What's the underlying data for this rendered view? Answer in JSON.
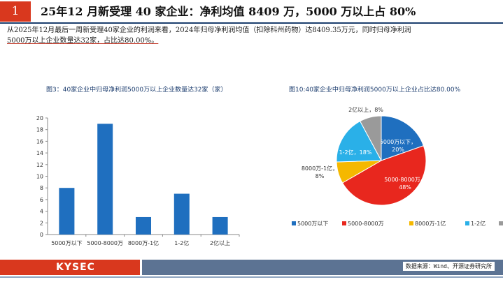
{
  "header": {
    "number": "1",
    "title": "25年12 月新受理 40 家企业：净利均值 8409 万，5000 万以上占 80%"
  },
  "description": {
    "line1": "从2025年12月最后一周新受理40家企业的利润来看，2024年归母净利润均值（扣除科州药物）达8409.35万元，同时归母净利润",
    "line2": "5000万以上企业数量达32家，占比达80.00%。"
  },
  "chart_data": [
    {
      "type": "bar",
      "title": "图3：40家企业中归母净利润5000万以上企业数量达32家（家）",
      "categories": [
        "5000万以下",
        "5000-8000万",
        "8000万-1亿",
        "1-2亿",
        "2亿以上"
      ],
      "values": [
        8,
        19,
        3,
        7,
        3
      ],
      "ylim": [
        0,
        20
      ],
      "yticks": [
        0,
        2,
        4,
        6,
        8,
        10,
        12,
        14,
        16,
        18,
        20
      ],
      "color": "#1f6fbf",
      "grid": false
    },
    {
      "type": "pie",
      "title": "图10:40家企业中归母净利润5000万以上企业占比达80.00%",
      "slices": [
        {
          "label": "5000万以下",
          "value": 20,
          "color": "#1f6fbf",
          "text": "5000万以下，\n20%"
        },
        {
          "label": "5000-8000万",
          "value": 48,
          "color": "#e8271e",
          "text": "5000-8000万，\n48%"
        },
        {
          "label": "8000万-1亿",
          "value": 8,
          "color": "#f5b800",
          "text": "8000万-1亿，\n8%"
        },
        {
          "label": "1-2亿",
          "value": 18,
          "color": "#2ab0e8",
          "text": "1-2亿，18%"
        },
        {
          "label": "2亿以上",
          "value": 8,
          "color": "#9a9a9a",
          "text": "2亿以上，8%"
        }
      ],
      "legend_position": "bottom"
    }
  ],
  "footer": {
    "logo": "KYSEC",
    "source": "数据来源：Wind、开源证券研究所"
  }
}
